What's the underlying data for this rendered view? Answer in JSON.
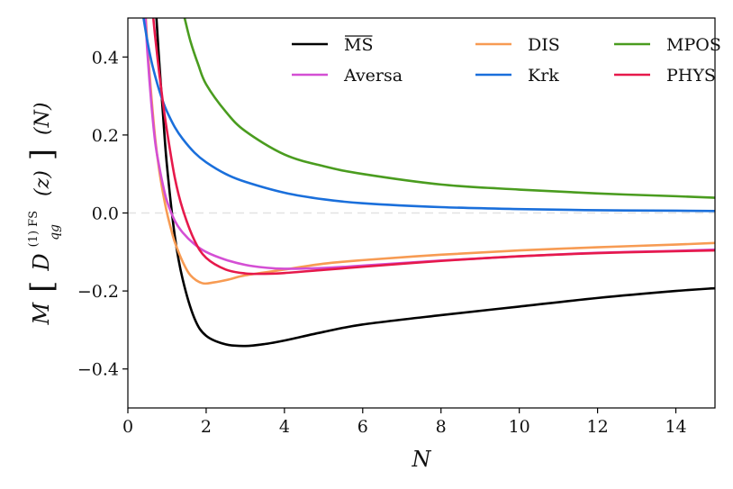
{
  "chart_data": {
    "type": "line",
    "title": "",
    "xlabel": "N",
    "ylabel": {
      "prefix": "M",
      "open_bracket": "[",
      "func": "D",
      "superscript": "(1) FS",
      "subscript": "qg",
      "argument": "(z)",
      "close_bracket": "]",
      "suffix": "(N)"
    },
    "xlim": [
      0,
      15
    ],
    "ylim": [
      -0.5,
      0.5
    ],
    "xticks": [
      0,
      2,
      4,
      6,
      8,
      10,
      12,
      14
    ],
    "xtick_labels": [
      "0",
      "2",
      "4",
      "6",
      "8",
      "10",
      "12",
      "14"
    ],
    "yticks": [
      -0.4,
      -0.2,
      0.0,
      0.2,
      0.4
    ],
    "ytick_labels": [
      "−0.4",
      "−0.2",
      "0.0",
      "0.2",
      "0.4"
    ],
    "zero_line": true,
    "legend_position": "top-right",
    "series": [
      {
        "name": "MS",
        "overline": true,
        "color": "#000000",
        "x": [
          0.73,
          0.8,
          0.9,
          1.0,
          1.2,
          1.4,
          1.7,
          2.0,
          2.5,
          3.0,
          3.5,
          4.0,
          5.0,
          6.0,
          8.0,
          10.0,
          12.0,
          14.0,
          15.0
        ],
        "y": [
          0.5,
          0.39,
          0.25,
          0.12,
          -0.06,
          -0.17,
          -0.27,
          -0.315,
          -0.337,
          -0.341,
          -0.336,
          -0.327,
          -0.305,
          -0.286,
          -0.262,
          -0.24,
          -0.218,
          -0.2,
          -0.193
        ]
      },
      {
        "name": "DIS",
        "overline": false,
        "color": "#f79b53",
        "x": [
          0.46,
          0.5,
          0.6,
          0.7,
          0.8,
          0.9,
          1.0,
          1.1,
          1.2,
          1.4,
          1.6,
          1.9,
          2.2,
          2.6,
          3.0,
          4.0,
          5.0,
          6.0,
          8.0,
          10.0,
          12.0,
          14.0,
          15.0
        ],
        "y": [
          0.5,
          0.43,
          0.3,
          0.19,
          0.11,
          0.05,
          0.0,
          -0.04,
          -0.075,
          -0.125,
          -0.16,
          -0.18,
          -0.178,
          -0.17,
          -0.16,
          -0.145,
          -0.13,
          -0.121,
          -0.107,
          -0.096,
          -0.088,
          -0.081,
          -0.077
        ]
      },
      {
        "name": "MPOS",
        "overline": false,
        "color": "#4a9c1f",
        "x": [
          1.45,
          1.6,
          1.8,
          2.0,
          2.5,
          3.0,
          4.0,
          5.0,
          6.0,
          8.0,
          10.0,
          12.0,
          14.0,
          15.0
        ],
        "y": [
          0.5,
          0.44,
          0.38,
          0.33,
          0.26,
          0.21,
          0.15,
          0.12,
          0.1,
          0.073,
          0.06,
          0.05,
          0.043,
          0.039
        ]
      },
      {
        "name": "Aversa",
        "overline": false,
        "color": "#d44fd4",
        "x": [
          0.45,
          0.5,
          0.6,
          0.7,
          0.8,
          0.9,
          1.0,
          1.2,
          1.4,
          1.7,
          2.0,
          2.5,
          3.0,
          3.5,
          4.0,
          5.0,
          6.0,
          8.0,
          10.0,
          12.0,
          14.0,
          15.0
        ],
        "y": [
          0.5,
          0.41,
          0.28,
          0.18,
          0.12,
          0.07,
          0.03,
          -0.02,
          -0.05,
          -0.08,
          -0.1,
          -0.12,
          -0.133,
          -0.14,
          -0.143,
          -0.141,
          -0.135,
          -0.122,
          -0.111,
          -0.102,
          -0.097,
          -0.094
        ]
      },
      {
        "name": "Krk",
        "overline": false,
        "color": "#1a6fdb",
        "x": [
          0.4,
          0.5,
          0.6,
          0.7,
          0.8,
          0.9,
          1.0,
          1.2,
          1.4,
          1.7,
          2.0,
          2.5,
          3.0,
          4.0,
          5.0,
          6.0,
          8.0,
          10.0,
          12.0,
          14.0,
          15.0
        ],
        "y": [
          0.5,
          0.44,
          0.39,
          0.35,
          0.315,
          0.285,
          0.26,
          0.22,
          0.19,
          0.155,
          0.13,
          0.1,
          0.08,
          0.052,
          0.035,
          0.025,
          0.015,
          0.01,
          0.007,
          0.006,
          0.005
        ]
      },
      {
        "name": "PHYS",
        "overline": false,
        "color": "#e6194b",
        "x": [
          0.65,
          0.7,
          0.8,
          0.9,
          1.0,
          1.2,
          1.4,
          1.7,
          2.0,
          2.5,
          3.0,
          3.5,
          4.0,
          5.0,
          6.0,
          8.0,
          10.0,
          12.0,
          14.0,
          15.0
        ],
        "y": [
          0.5,
          0.45,
          0.36,
          0.28,
          0.21,
          0.09,
          0.01,
          -0.07,
          -0.115,
          -0.145,
          -0.155,
          -0.156,
          -0.154,
          -0.146,
          -0.138,
          -0.123,
          -0.111,
          -0.103,
          -0.098,
          -0.096
        ]
      }
    ],
    "legend_order": [
      "MS",
      "DIS",
      "MPOS",
      "Aversa",
      "Krk",
      "PHYS"
    ]
  }
}
